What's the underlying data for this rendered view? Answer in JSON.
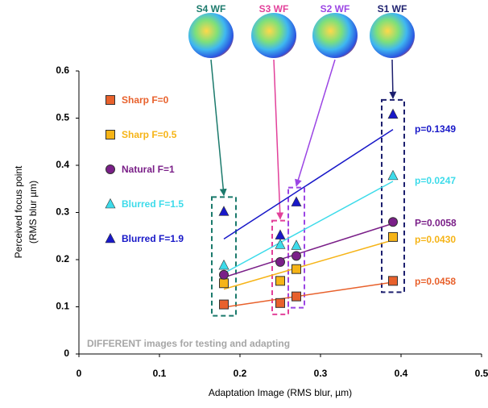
{
  "chart_data": {
    "type": "scatter",
    "x_label": "Adaptation Image (RMS blur, µm)",
    "y_label": [
      "Perceived focus point",
      "(RMS blur µm)"
    ],
    "annotation": "DIFFERENT images for testing and adapting",
    "xlim": [
      0,
      0.5
    ],
    "xticks": [
      0,
      0.1,
      0.2,
      0.3,
      0.4,
      0.5
    ],
    "ylim": [
      0,
      0.6
    ],
    "yticks": [
      0,
      0.1,
      0.2,
      0.3,
      0.4,
      0.5,
      0.6
    ],
    "wavefronts": [
      {
        "label": "S4 WF",
        "color": "#1b7a6c"
      },
      {
        "label": "S3 WF",
        "color": "#e2409a"
      },
      {
        "label": "S2 WF",
        "color": "#9b45e4"
      },
      {
        "label": "S1 WF",
        "color": "#1c1f6e"
      }
    ],
    "series": [
      {
        "name": "Sharp F=0",
        "marker": "square",
        "color": "#e8612c",
        "x": [
          0.18,
          0.25,
          0.27,
          0.39
        ],
        "values": [
          0.105,
          0.108,
          0.122,
          0.155
        ],
        "p_label": "p=0.0458"
      },
      {
        "name": "Sharp F=0.5",
        "marker": "square",
        "color": "#f6b417",
        "x": [
          0.18,
          0.25,
          0.27,
          0.39
        ],
        "values": [
          0.15,
          0.155,
          0.18,
          0.248
        ],
        "p_label": "p=0.0430"
      },
      {
        "name": "Natural F=1",
        "marker": "circle",
        "color": "#7a1f88",
        "x": [
          0.18,
          0.25,
          0.27,
          0.39
        ],
        "values": [
          0.168,
          0.195,
          0.208,
          0.28
        ],
        "p_label": "P=0.0058"
      },
      {
        "name": "Blurred F=1.5",
        "marker": "triangle",
        "color": "#3ddbea",
        "x": [
          0.18,
          0.25,
          0.27,
          0.39
        ],
        "values": [
          0.188,
          0.232,
          0.23,
          0.378
        ],
        "p_label": "p=0.0247"
      },
      {
        "name": "Blurred F=1.9",
        "marker": "triangle",
        "color": "#1818c8",
        "x": [
          0.18,
          0.25,
          0.27,
          0.39
        ],
        "values": [
          0.302,
          0.252,
          0.322,
          0.508
        ],
        "p_label": "p=0.1349"
      }
    ]
  }
}
